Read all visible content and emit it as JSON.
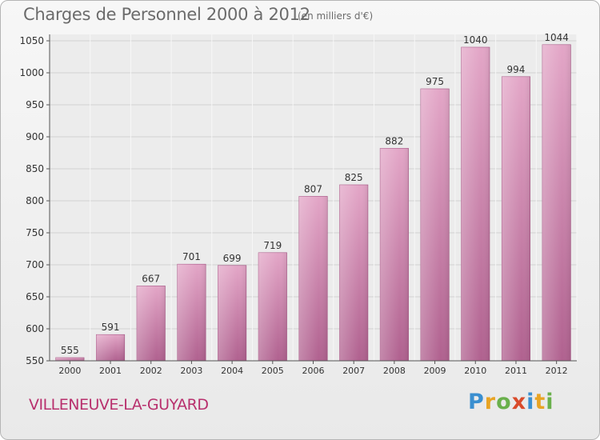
{
  "chart_data": {
    "type": "bar",
    "title": "Charges de Personnel 2000 à 2012",
    "subtitle": "(en milliers d'€)",
    "categories": [
      "2000",
      "2001",
      "2002",
      "2003",
      "2004",
      "2005",
      "2006",
      "2007",
      "2008",
      "2009",
      "2010",
      "2011",
      "2012"
    ],
    "values": [
      555,
      591,
      667,
      701,
      699,
      719,
      807,
      825,
      882,
      975,
      1040,
      994,
      1044
    ],
    "ylim": [
      550,
      1060
    ],
    "yticks": [
      550,
      600,
      650,
      700,
      750,
      800,
      850,
      900,
      950,
      1000,
      1050
    ],
    "grid": true,
    "bar_color": "#c9709f"
  },
  "commune": "VILLENEUVE-LA-GUYARD",
  "logo": {
    "letters": [
      "P",
      "r",
      "o",
      "x",
      "i",
      "t",
      "i"
    ],
    "colors": [
      "#3a8fd0",
      "#e8a424",
      "#6ab04c",
      "#d94b2b",
      "#3a8fd0",
      "#e8a424",
      "#6ab04c"
    ]
  }
}
